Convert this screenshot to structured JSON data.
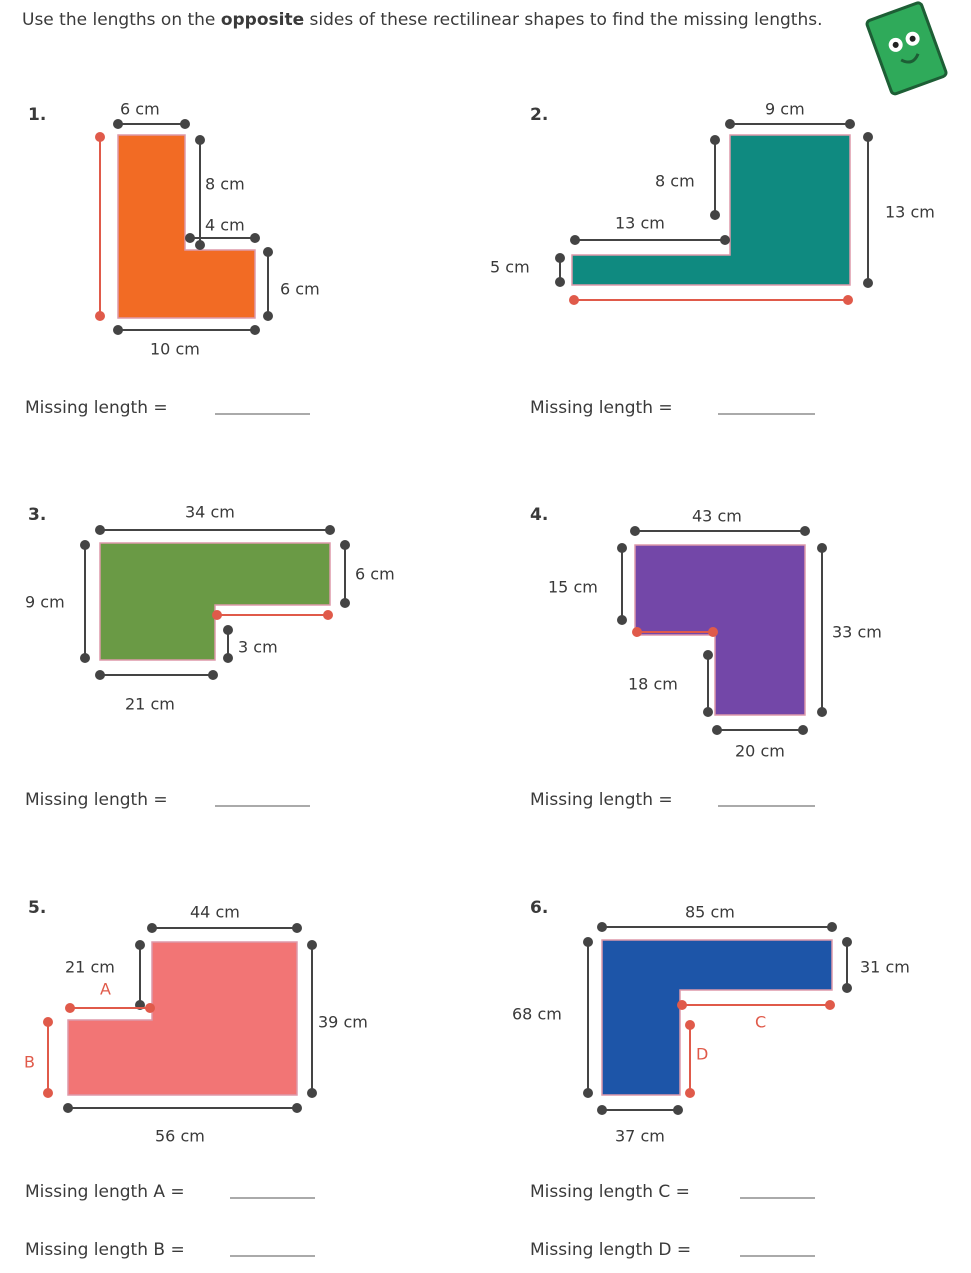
{
  "instructions": {
    "before": "Use the lengths on the",
    "bold": "opposite",
    "after": "sides of these rectilinear shapes to find the missing lengths."
  },
  "problems": [
    {
      "number": "1.",
      "labels": [
        "6 cm",
        "8 cm",
        "4 cm",
        "6 cm",
        "10 cm"
      ],
      "answers": [
        "Missing length ="
      ]
    },
    {
      "number": "2.",
      "labels": [
        "9 cm",
        "8 cm",
        "13 cm",
        "13 cm",
        "5 cm"
      ],
      "answers": [
        "Missing length ="
      ]
    },
    {
      "number": "3.",
      "labels": [
        "34 cm",
        "6 cm",
        "9 cm",
        "3 cm",
        "21 cm"
      ],
      "answers": [
        "Missing length ="
      ]
    },
    {
      "number": "4.",
      "labels": [
        "43 cm",
        "15 cm",
        "33 cm",
        "18 cm",
        "20 cm"
      ],
      "answers": [
        "Missing length ="
      ]
    },
    {
      "number": "5.",
      "labels": [
        "44 cm",
        "21 cm",
        "A",
        "39 cm",
        "B",
        "56 cm"
      ],
      "answers": [
        "Missing length A =",
        "Missing length B ="
      ]
    },
    {
      "number": "6.",
      "labels": [
        "85 cm",
        "31 cm",
        "68 cm",
        "C",
        "D",
        "37 cm"
      ],
      "answers": [
        "Missing length C =",
        "Missing length D ="
      ]
    }
  ]
}
